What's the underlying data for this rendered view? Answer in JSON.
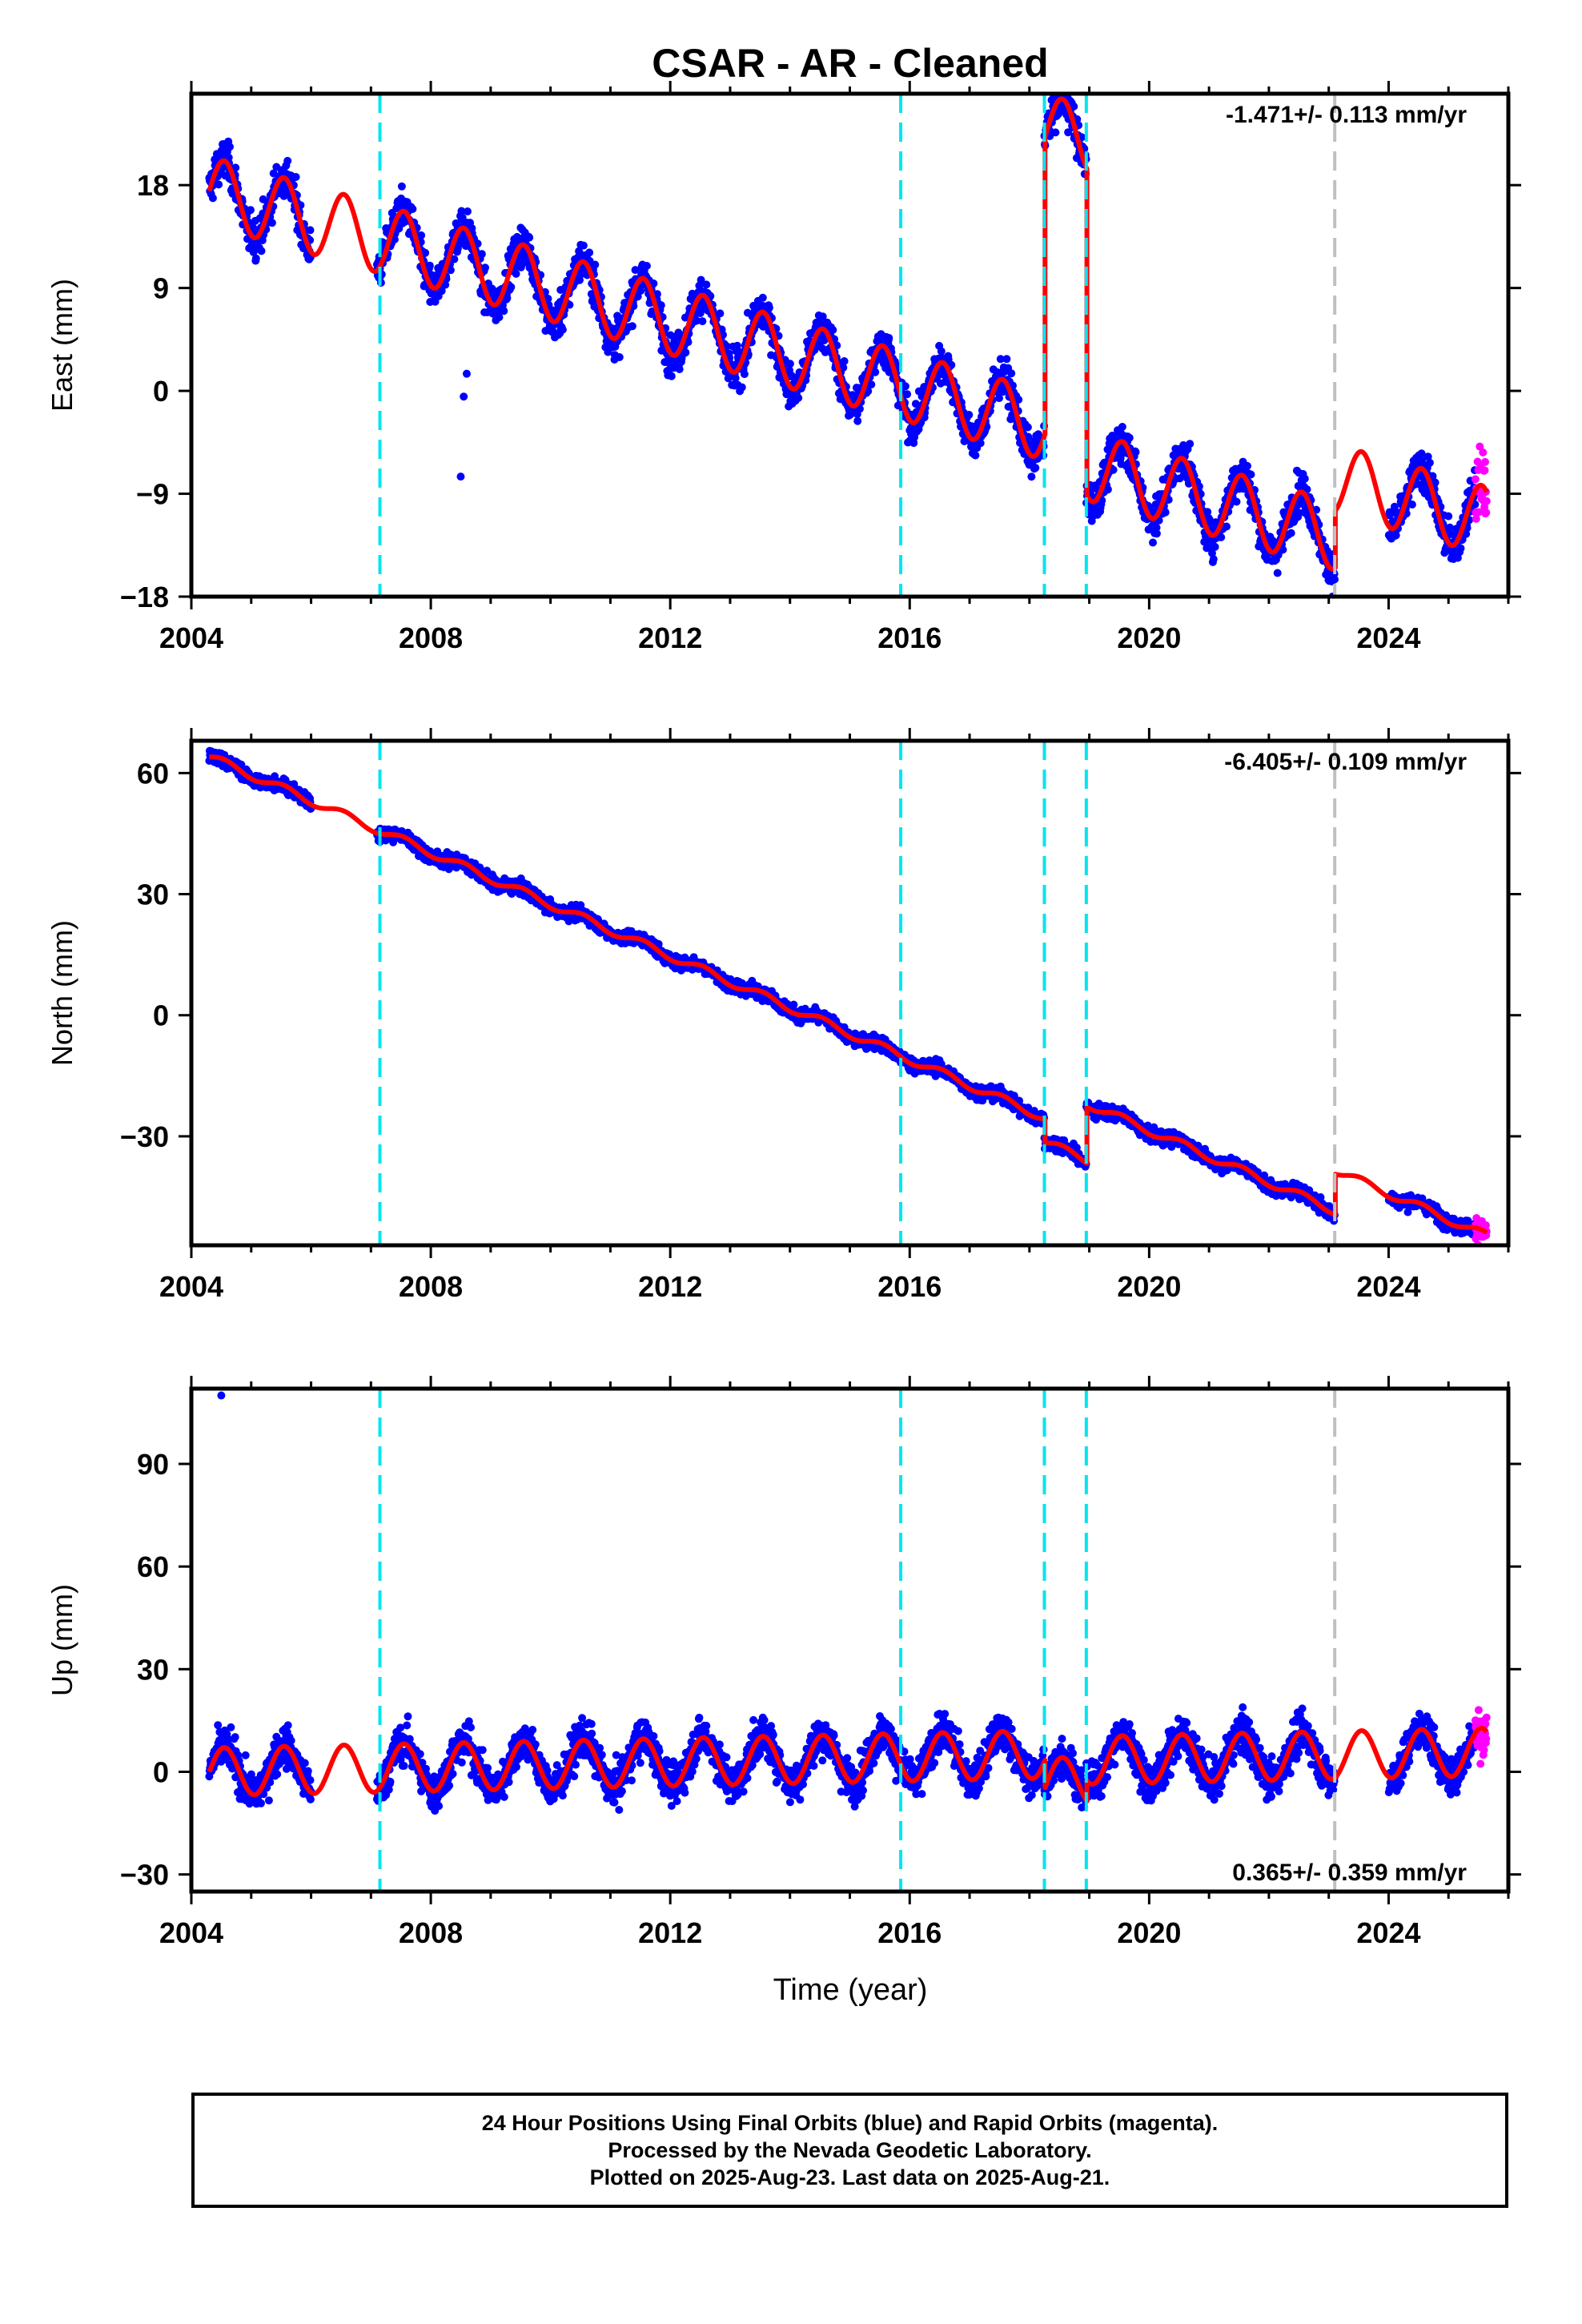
{
  "title": "CSAR  - AR - Cleaned",
  "xlabel": "Time (year)",
  "footer": {
    "line1": "24 Hour Positions Using Final Orbits (blue) and Rapid Orbits (magenta).",
    "line2": "Processed by the Nevada Geodetic Laboratory.",
    "line3": "Plotted on 2025-Aug-23. Last data on 2025-Aug-21."
  },
  "colors": {
    "final_orbits": "#0000ff",
    "rapid_orbits": "#ff00ff",
    "model_fit": "#ff0000",
    "equipment_change": "#00e5ee",
    "other_event": "#c0c0c0"
  },
  "chart_data": [
    {
      "type": "scatter",
      "ylabel": "East (mm)",
      "rate_label": "-1.471+/- 0.113 mm/yr",
      "xlim": [
        2004,
        2026
      ],
      "ylim": [
        -18,
        26
      ],
      "xticks": [
        "2004",
        "2008",
        "2012",
        "2016",
        "2020",
        "2024"
      ],
      "yticks": [
        18,
        9,
        0,
        -9,
        -18
      ],
      "rate": -1.471,
      "anchor": [
        2004.3,
        17.5
      ],
      "annual_amp": 3.0,
      "noise": 1.2,
      "offsets": [
        {
          "t": 2018.25,
          "dy": 26.0
        },
        {
          "t": 2018.95,
          "dy": -28.5
        },
        {
          "t": 2023.1,
          "dy": 5.0
        }
      ],
      "outliers": [
        [
          2008.5,
          -7.5
        ],
        [
          2008.55,
          -0.5
        ],
        [
          2008.6,
          1.5
        ]
      ],
      "vlines_cyan": [
        2007.15,
        2015.85,
        2018.25,
        2018.95
      ],
      "vlines_gray": [
        2023.1
      ]
    },
    {
      "type": "scatter",
      "ylabel": "North (mm)",
      "rate_label": "-6.405+/- 0.109 mm/yr",
      "xlim": [
        2004,
        2026
      ],
      "ylim": [
        -57,
        68
      ],
      "xticks": [
        "2004",
        "2008",
        "2012",
        "2016",
        "2020",
        "2024"
      ],
      "yticks": [
        60,
        30,
        0,
        -30
      ],
      "rate": -6.405,
      "anchor": [
        2004.3,
        64
      ],
      "annual_amp": 1.0,
      "noise": 1.2,
      "offsets": [
        {
          "t": 2018.25,
          "dy": -6.0
        },
        {
          "t": 2018.95,
          "dy": 14.0
        },
        {
          "t": 2023.1,
          "dy": 10.0
        }
      ],
      "outliers": [],
      "vlines_cyan": [
        2007.15,
        2015.85,
        2018.25,
        2018.95
      ],
      "vlines_gray": [
        2023.1
      ]
    },
    {
      "type": "scatter",
      "ylabel": "Up (mm)",
      "rate_label": "0.365+/- 0.359 mm/yr",
      "xlim": [
        2004,
        2026
      ],
      "ylim": [
        -35,
        112
      ],
      "xticks": [
        "2004",
        "2008",
        "2012",
        "2016",
        "2020",
        "2024"
      ],
      "yticks": [
        90,
        60,
        30,
        0,
        -30
      ],
      "rate": 0.365,
      "anchor": [
        2004.3,
        0
      ],
      "annual_amp": 7.0,
      "noise": 4.0,
      "offsets": [
        {
          "t": 2018.25,
          "dy": -8.0
        },
        {
          "t": 2018.95,
          "dy": 6.0
        }
      ],
      "outliers": [
        [
          2004.5,
          110
        ]
      ],
      "vlines_cyan": [
        2007.15,
        2015.85,
        2018.25,
        2018.95
      ],
      "vlines_gray": [
        2023.1
      ]
    }
  ],
  "data_gaps": [
    [
      2006.0,
      2007.1
    ],
    [
      2023.1,
      2024.0
    ]
  ],
  "rapid_start": 2025.45,
  "last_data": 2025.64
}
